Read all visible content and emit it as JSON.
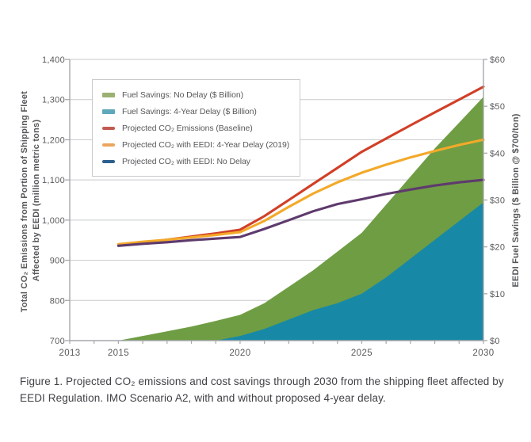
{
  "figure": {
    "caption": [
      "Figure 1. Projected CO₂ emissions and cost savings through 2030 from the shipping fleet affected by",
      "EEDI Regulation. IMO Scenario A2, with and without proposed 4-year delay."
    ]
  },
  "chart_data": {
    "type": "area-line-combo",
    "title": "",
    "grid": "horizontal",
    "legend_position": "upper-left-inside",
    "x_axis": {
      "range": [
        2013,
        2030
      ],
      "tick_step": 1,
      "labeled_ticks": [
        {
          "v": 2013,
          "label": "2013"
        },
        {
          "v": 2015,
          "label": "2015"
        },
        {
          "v": 2020,
          "label": "2020"
        },
        {
          "v": 2025,
          "label": "2025"
        },
        {
          "v": 2030,
          "label": "2030"
        }
      ]
    },
    "left_axis": {
      "label_line1": "Total CO₂ Emissions from Portion of Shipping Fleet",
      "label_line2": "Affected by EEDI (million metric tons)",
      "range": [
        700,
        1400
      ],
      "ticks": [
        {
          "v": 700,
          "label": "700"
        },
        {
          "v": 800,
          "label": "800"
        },
        {
          "v": 900,
          "label": "900"
        },
        {
          "v": 1000,
          "label": "1,000"
        },
        {
          "v": 1100,
          "label": "1,100"
        },
        {
          "v": 1200,
          "label": "1,200"
        },
        {
          "v": 1300,
          "label": "1,300"
        },
        {
          "v": 1400,
          "label": "1,400"
        }
      ]
    },
    "right_axis": {
      "label": "EEDI Fuel Savings ($ Billion @ $700/ton)",
      "range": [
        0,
        60
      ],
      "ticks": [
        {
          "v": 0,
          "label": "$0"
        },
        {
          "v": 10,
          "label": "$10"
        },
        {
          "v": 20,
          "label": "$20"
        },
        {
          "v": 30,
          "label": "$30"
        },
        {
          "v": 40,
          "label": "$40"
        },
        {
          "v": 50,
          "label": "$50"
        },
        {
          "v": 60,
          "label": "$60"
        }
      ]
    },
    "style": {
      "grid_color": "#c8c9cb",
      "axis_color": "#a6a8ab",
      "tick_text_color": "#58595b"
    },
    "series": [
      {
        "id": "fuel-savings-no-delay",
        "name": "Fuel Savings: No Delay ($ Billion)",
        "kind": "area",
        "axis": "right",
        "color": "#6f9d44",
        "legend_color": "#9cb171",
        "x": [
          2015,
          2016,
          2017,
          2018,
          2019,
          2020,
          2021,
          2022,
          2023,
          2024,
          2025,
          2026,
          2027,
          2028,
          2029,
          2030
        ],
        "values": [
          0,
          1,
          2,
          3,
          4.2,
          5.5,
          8,
          11.5,
          15,
          19,
          23,
          29,
          35,
          41,
          46.5,
          52
        ]
      },
      {
        "id": "fuel-savings-4yr-delay",
        "name": "Fuel Savings: 4-Year Delay ($ Billion)",
        "kind": "area",
        "axis": "right",
        "color": "#1789a6",
        "legend_color": "#5ea8ba",
        "x": [
          2019,
          2020,
          2021,
          2022,
          2023,
          2024,
          2025,
          2026,
          2027,
          2028,
          2029,
          2030
        ],
        "values": [
          0,
          1,
          2.5,
          4.5,
          6.5,
          8,
          10,
          13.5,
          17.5,
          21.5,
          25.5,
          29.5
        ]
      },
      {
        "id": "co2-baseline",
        "name": "Projected CO₂ Emissions (Baseline)",
        "kind": "line",
        "axis": "left",
        "color": "#d13f27",
        "legend_color": "#c15a50",
        "x": [
          2015,
          2016,
          2017,
          2018,
          2019,
          2020,
          2021,
          2022,
          2023,
          2024,
          2025,
          2026,
          2027,
          2028,
          2029,
          2030
        ],
        "values": [
          937,
          944,
          951,
          959,
          967,
          976,
          1010,
          1050,
          1090,
          1130,
          1170,
          1203,
          1236,
          1268,
          1300,
          1332
        ]
      },
      {
        "id": "co2-eedi-4yr-delay",
        "name": "Projected CO₂ with EEDI: 4-Year Delay (2019)",
        "kind": "line",
        "axis": "left",
        "color": "#f3a929",
        "legend_color": "#eca55e",
        "x": [
          2015,
          2016,
          2017,
          2018,
          2019,
          2020,
          2021,
          2022,
          2023,
          2024,
          2025,
          2026,
          2027,
          2028,
          2029,
          2030
        ],
        "values": [
          940,
          946,
          951,
          957,
          963,
          970,
          998,
          1033,
          1066,
          1094,
          1118,
          1138,
          1156,
          1172,
          1187,
          1200
        ]
      },
      {
        "id": "co2-eedi-no-delay",
        "name": "Projected CO₂ with EEDI: No Delay",
        "kind": "line",
        "axis": "left",
        "color": "#5e3a6d",
        "legend_color": "#2c608e",
        "x": [
          2015,
          2016,
          2017,
          2018,
          2019,
          2020,
          2021,
          2022,
          2023,
          2024,
          2025,
          2026,
          2027,
          2028,
          2029,
          2030
        ],
        "values": [
          936,
          941,
          945,
          950,
          954,
          958,
          978,
          1000,
          1022,
          1040,
          1052,
          1065,
          1076,
          1086,
          1094,
          1100
        ]
      }
    ]
  }
}
